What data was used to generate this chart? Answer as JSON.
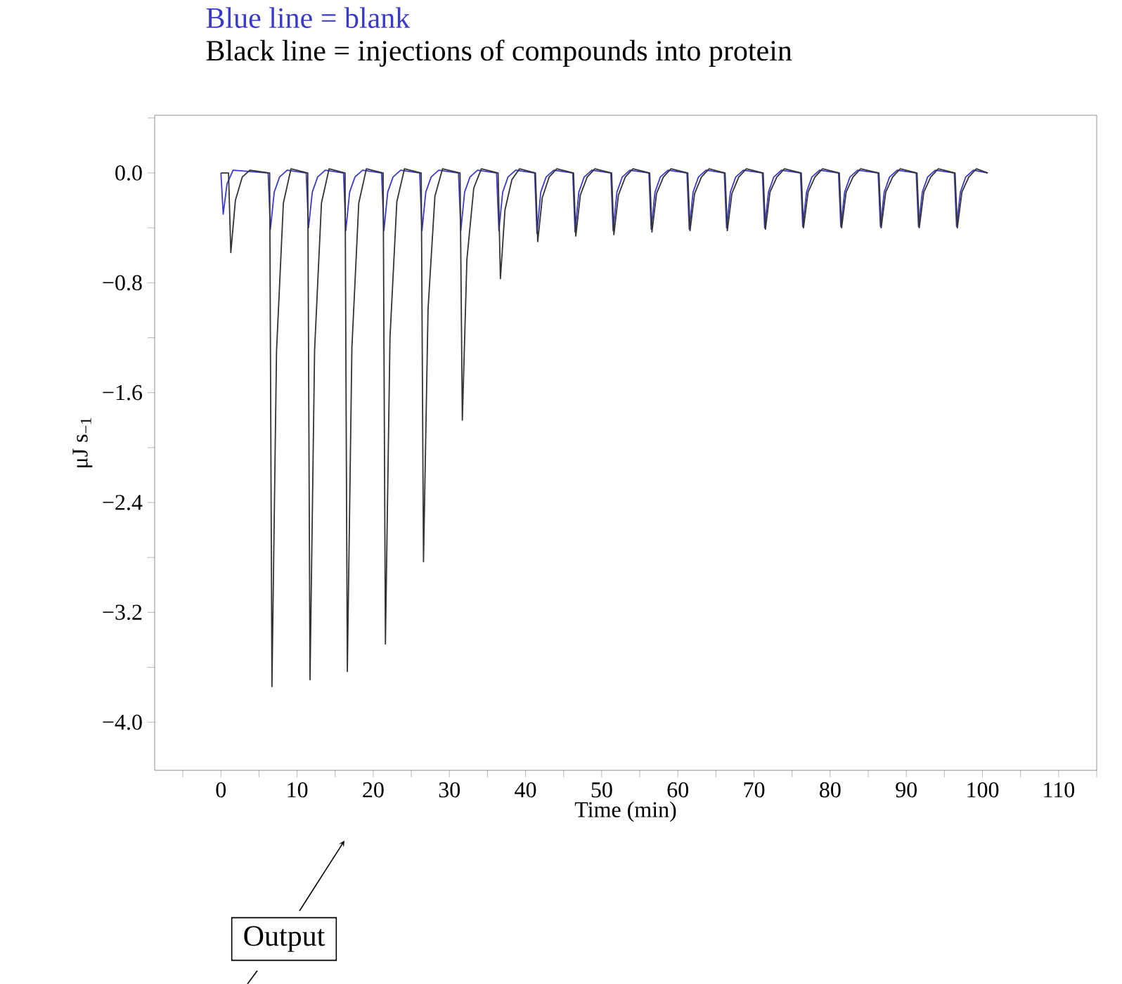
{
  "chart_data": {
    "type": "line",
    "title": "Blue line = blank",
    "subtitle": "Black line = injections of compounds into protein",
    "xlabel": "Time (min)",
    "ylabel": "μJ s$_{−1}$",
    "annotations": [
      "Output"
    ],
    "xlim": [
      -8.7,
      115
    ],
    "ylim": [
      -4.35,
      0.42
    ],
    "xticks": [
      {
        "value": -5,
        "label": null
      },
      0,
      {
        "value": 5,
        "label": null
      },
      10,
      {
        "value": 15,
        "label": null
      },
      20,
      {
        "value": 25,
        "label": null
      },
      30,
      {
        "value": 35,
        "label": null
      },
      40,
      {
        "value": 45,
        "label": null
      },
      50,
      {
        "value": 55,
        "label": null
      },
      60,
      {
        "value": 65,
        "label": null
      },
      70,
      {
        "value": 75,
        "label": null
      },
      80,
      {
        "value": 85,
        "label": null
      },
      90,
      {
        "value": 95,
        "label": null
      },
      100,
      {
        "value": 105,
        "label": null
      },
      110,
      {
        "value": 115,
        "label": null
      }
    ],
    "yticks": [
      {
        "value": 0.4,
        "label": null
      },
      {
        "value": 0,
        "label": "0.0"
      },
      {
        "value": -0.4,
        "label": null
      },
      {
        "value": -0.8,
        "label": "−0.8"
      },
      {
        "value": -1.2,
        "label": null
      },
      {
        "value": -1.6,
        "label": "−1.6"
      },
      {
        "value": -2.0,
        "label": null
      },
      {
        "value": -2.4,
        "label": "−2.4"
      },
      {
        "value": -2.8,
        "label": null
      },
      {
        "value": -3.2,
        "label": "−3.2"
      },
      {
        "value": -3.6,
        "label": null
      },
      {
        "value": -4.0,
        "label": "−4.0"
      }
    ],
    "series": [
      {
        "color": "#3a3ac8",
        "x": [
          0,
          0.3,
          0.8,
          1.6,
          6.2,
          6.5,
          7.0,
          7.7,
          8.7,
          11.2,
          11.5,
          12.0,
          12.7,
          13.7,
          16.1,
          16.4,
          16.9,
          17.6,
          18.6,
          21.1,
          21.4,
          21.9,
          22.6,
          23.6,
          26.1,
          26.4,
          26.9,
          27.6,
          28.6,
          31.2,
          31.5,
          32.0,
          32.7,
          33.7,
          36.2,
          36.5,
          37.0,
          37.7,
          38.7,
          41.2,
          41.5,
          42.0,
          42.7,
          43.7,
          46.2,
          46.5,
          47.0,
          47.7,
          48.7,
          51.2,
          51.5,
          52.0,
          52.7,
          53.7,
          56.2,
          56.5,
          57.0,
          57.7,
          58.7,
          61.2,
          61.5,
          62.0,
          62.7,
          63.7,
          66.1,
          66.4,
          66.9,
          67.6,
          68.6,
          71.1,
          71.4,
          71.9,
          72.6,
          73.6,
          76.1,
          76.4,
          76.9,
          77.6,
          78.6,
          81.1,
          81.4,
          81.9,
          82.6,
          83.6,
          86.3,
          86.6,
          87.1,
          87.8,
          88.8,
          91.3,
          91.6,
          92.1,
          92.8,
          93.8,
          96.3,
          96.6,
          97.1,
          97.8,
          98.8,
          100.7
        ],
        "values": [
          0.0,
          -0.3,
          -0.08,
          0.02,
          0.0,
          -0.41,
          -0.14,
          -0.03,
          0.02,
          0.0,
          -0.4,
          -0.14,
          -0.03,
          0.02,
          0.0,
          -0.42,
          -0.14,
          -0.03,
          0.02,
          0.0,
          -0.42,
          -0.14,
          -0.03,
          0.02,
          0.0,
          -0.42,
          -0.14,
          -0.03,
          0.02,
          0.0,
          -0.42,
          -0.14,
          -0.03,
          0.02,
          0.0,
          -0.42,
          -0.14,
          -0.03,
          0.02,
          0.0,
          -0.44,
          -0.14,
          -0.03,
          0.02,
          0.0,
          -0.43,
          -0.14,
          -0.03,
          0.02,
          0.0,
          -0.42,
          -0.14,
          -0.03,
          0.02,
          0.0,
          -0.41,
          -0.14,
          -0.03,
          0.02,
          0.0,
          -0.41,
          -0.14,
          -0.03,
          0.02,
          0.0,
          -0.4,
          -0.14,
          -0.03,
          0.02,
          0.0,
          -0.4,
          -0.14,
          -0.03,
          0.02,
          0.0,
          -0.39,
          -0.14,
          -0.03,
          0.02,
          0.0,
          -0.39,
          -0.14,
          -0.03,
          0.02,
          0.0,
          -0.39,
          -0.14,
          -0.03,
          0.02,
          0.0,
          -0.39,
          -0.14,
          -0.03,
          0.02,
          0.0,
          -0.39,
          -0.14,
          -0.03,
          0.02,
          0.0
        ]
      },
      {
        "color": "#333333",
        "x": [
          0,
          1.0,
          1.3,
          1.9,
          2.8,
          3.8,
          6.4,
          6.7,
          7.3,
          8.2,
          9.2,
          11.4,
          11.7,
          12.3,
          13.2,
          14.2,
          16.3,
          16.6,
          17.2,
          18.1,
          19.1,
          21.3,
          21.6,
          22.2,
          23.1,
          24.1,
          26.3,
          26.6,
          27.2,
          28.1,
          29.1,
          31.4,
          31.7,
          32.3,
          33.2,
          34.2,
          36.4,
          36.7,
          37.3,
          38.2,
          39.2,
          41.3,
          41.6,
          42.2,
          43.1,
          44.1,
          46.3,
          46.6,
          47.2,
          48.1,
          49.1,
          51.3,
          51.6,
          52.2,
          53.1,
          54.1,
          56.3,
          56.6,
          57.2,
          58.1,
          59.1,
          61.3,
          61.6,
          62.2,
          63.1,
          64.1,
          66.2,
          66.5,
          67.1,
          68.0,
          69.0,
          71.2,
          71.5,
          72.1,
          73.0,
          74.0,
          76.2,
          76.5,
          77.1,
          78.0,
          79.0,
          81.2,
          81.5,
          82.1,
          83.0,
          84.0,
          86.4,
          86.7,
          87.3,
          88.2,
          89.2,
          91.4,
          91.7,
          92.3,
          93.2,
          94.2,
          96.4,
          96.7,
          97.3,
          98.2,
          99.2,
          100.7
        ],
        "values": [
          0.0,
          0.0,
          -0.58,
          -0.2,
          -0.03,
          0.02,
          0.0,
          -3.74,
          -1.3,
          -0.22,
          0.03,
          0.0,
          -3.69,
          -1.29,
          -0.22,
          0.03,
          0.0,
          -3.63,
          -1.27,
          -0.22,
          0.03,
          0.0,
          -3.43,
          -1.2,
          -0.21,
          0.03,
          0.0,
          -2.83,
          -0.99,
          -0.17,
          0.03,
          0.0,
          -1.8,
          -0.63,
          -0.11,
          0.03,
          0.0,
          -0.77,
          -0.27,
          -0.05,
          0.03,
          0.0,
          -0.5,
          -0.18,
          -0.03,
          0.03,
          0.0,
          -0.46,
          -0.16,
          -0.03,
          0.03,
          0.0,
          -0.45,
          -0.16,
          -0.03,
          0.03,
          0.0,
          -0.43,
          -0.15,
          -0.03,
          0.03,
          0.0,
          -0.42,
          -0.15,
          -0.03,
          0.03,
          0.0,
          -0.42,
          -0.15,
          -0.03,
          0.03,
          0.0,
          -0.41,
          -0.14,
          -0.03,
          0.03,
          0.0,
          -0.4,
          -0.14,
          -0.03,
          0.03,
          0.0,
          -0.4,
          -0.14,
          -0.03,
          0.03,
          0.0,
          -0.4,
          -0.14,
          -0.03,
          0.03,
          0.0,
          -0.4,
          -0.14,
          -0.03,
          0.03,
          0.0,
          -0.4,
          -0.14,
          -0.03,
          0.03,
          0.0
        ]
      }
    ]
  }
}
